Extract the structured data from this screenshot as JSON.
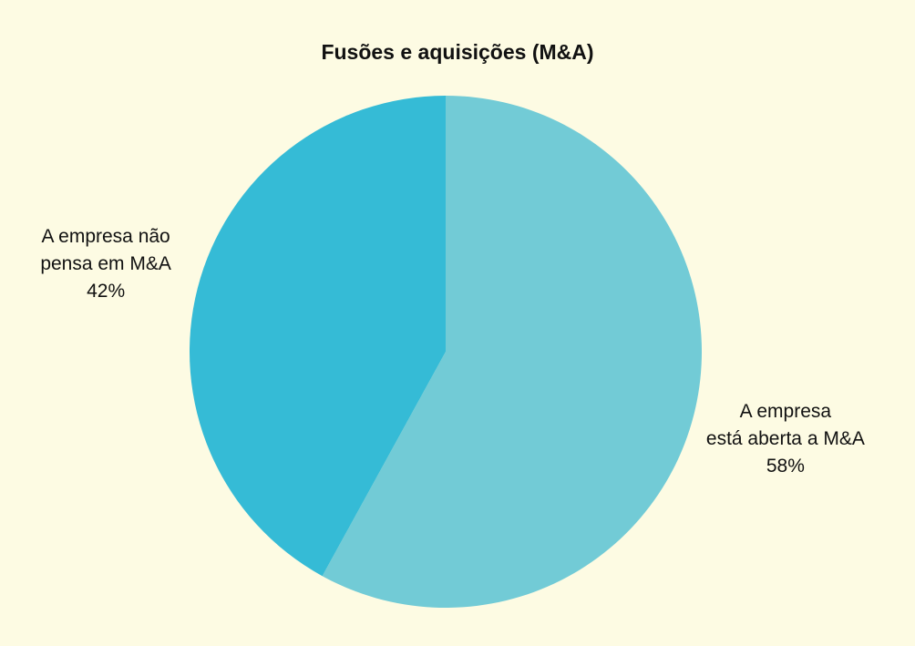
{
  "chart_data": {
    "type": "pie",
    "title": "Fusões e aquisições (M&A)",
    "categories": [
      "A empresa\nestá aberta a M&A",
      "A empresa não\npensa em M&A"
    ],
    "values": [
      58,
      42
    ],
    "value_labels": [
      "58%",
      "42%"
    ],
    "colors": [
      "#72cbd6",
      "#35bbd6"
    ]
  }
}
